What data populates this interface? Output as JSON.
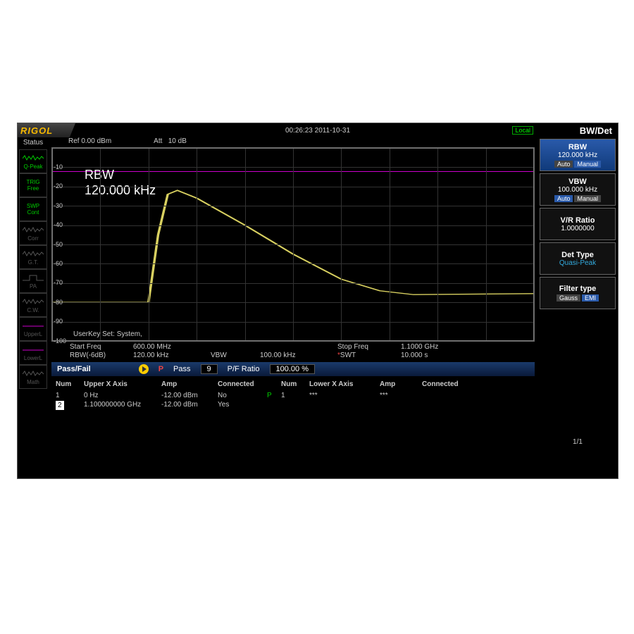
{
  "brand": "RIGOL",
  "clock_text": "00:26:23 2011-10-31",
  "local_label": "Local",
  "menu_title": "BW/Det",
  "status": {
    "header": "Status",
    "items": [
      {
        "name": "qpeak",
        "label": "Q-Peak",
        "wave": "noise",
        "active": true
      },
      {
        "name": "trig",
        "label": "TRIG",
        "sub": "Free",
        "active": true,
        "wave": "none"
      },
      {
        "name": "swp",
        "label": "SWP",
        "sub": "Cont",
        "active": true,
        "wave": "none"
      },
      {
        "name": "corr",
        "label": "Corr",
        "wave": "noise",
        "active": false
      },
      {
        "name": "gt",
        "label": "G.T.",
        "wave": "noise",
        "active": false
      },
      {
        "name": "pa",
        "label": "PA",
        "wave": "pulse",
        "active": false
      },
      {
        "name": "cw",
        "label": "C.W.",
        "wave": "noise",
        "active": false
      },
      {
        "name": "upperl",
        "label": "UpperL",
        "wave": "line",
        "active": false,
        "magenta": true
      },
      {
        "name": "lowerl",
        "label": "LowerL",
        "wave": "line",
        "active": false,
        "magenta": true
      },
      {
        "name": "math",
        "label": "Math",
        "wave": "noise",
        "active": false
      }
    ]
  },
  "plot": {
    "ref_label": "Ref",
    "ref_value": "0.00 dBm",
    "att_label": "Att",
    "att_value": "10 dB",
    "yticks": [
      "-10",
      "-20",
      "-30",
      "-40",
      "-50",
      "-60",
      "-70",
      "-80",
      "-90",
      "-100"
    ],
    "annot_title": "RBW",
    "annot_value": "120.000 kHz",
    "userkey": "UserKey Set:   System,",
    "limit_y_frac": 0.12,
    "trace_color": "#d8d060",
    "grid_color": "#333333",
    "border_color": "#787878",
    "trace_points": [
      [
        0,
        0.8
      ],
      [
        0.2,
        0.8
      ],
      [
        0.22,
        0.45
      ],
      [
        0.24,
        0.24
      ],
      [
        0.26,
        0.22
      ],
      [
        0.3,
        0.26
      ],
      [
        0.4,
        0.4
      ],
      [
        0.5,
        0.55
      ],
      [
        0.6,
        0.68
      ],
      [
        0.68,
        0.74
      ],
      [
        0.75,
        0.76
      ],
      [
        1.0,
        0.755
      ]
    ]
  },
  "footer": {
    "start_freq_label": "Start Freq",
    "start_freq": "600.00 MHz",
    "stop_freq_label": "Stop Freq",
    "stop_freq": "1.1000 GHz",
    "rbw_label": "RBW(-6dB)",
    "rbw": "120.00 kHz",
    "vbw_label": "VBW",
    "vbw": "100.00 kHz",
    "swt_marker": "*",
    "swt_label": "SWT",
    "swt": "10.000 s"
  },
  "passfail": {
    "title": "Pass/Fail",
    "p_label": "P",
    "pass_label": "Pass",
    "pass_value": "9",
    "ratio_label": "P/F Ratio",
    "ratio_value": "100.00 %"
  },
  "table": {
    "headers": {
      "num": "Num",
      "ux": "Upper X Axis",
      "amp": "Amp",
      "conn": "Connected",
      "num2": "Num",
      "lx": "Lower X Axis",
      "amp2": "Amp",
      "conn2": "Connected"
    },
    "rows": [
      {
        "num": "1",
        "ux": "0 Hz",
        "amp": "-12.00 dBm",
        "conn": "No",
        "p": "P",
        "num2": "1",
        "lx": "***",
        "amp2": "***",
        "conn2": ""
      },
      {
        "num": "2",
        "ux": "1.100000000 GHz",
        "amp": "-12.00 dBm",
        "conn": "Yes",
        "p": "",
        "num2": "",
        "lx": "",
        "amp2": "",
        "conn2": "",
        "sel": true
      }
    ]
  },
  "menu": {
    "rbw": {
      "label": "RBW",
      "value": "120.000 kHz",
      "auto": "Auto",
      "manual": "Manual",
      "selected": true,
      "mode": "manual"
    },
    "vbw": {
      "label": "VBW",
      "value": "100.000 kHz",
      "auto": "Auto",
      "manual": "Manual",
      "mode": "auto"
    },
    "vr": {
      "label": "V/R Ratio",
      "value": "1.0000000"
    },
    "det": {
      "label": "Det Type",
      "value": "Quasi-Peak"
    },
    "filter": {
      "label": "Filter type",
      "gauss": "Gauss",
      "emi": "EMI",
      "mode": "emi"
    },
    "pager": "1/1"
  }
}
